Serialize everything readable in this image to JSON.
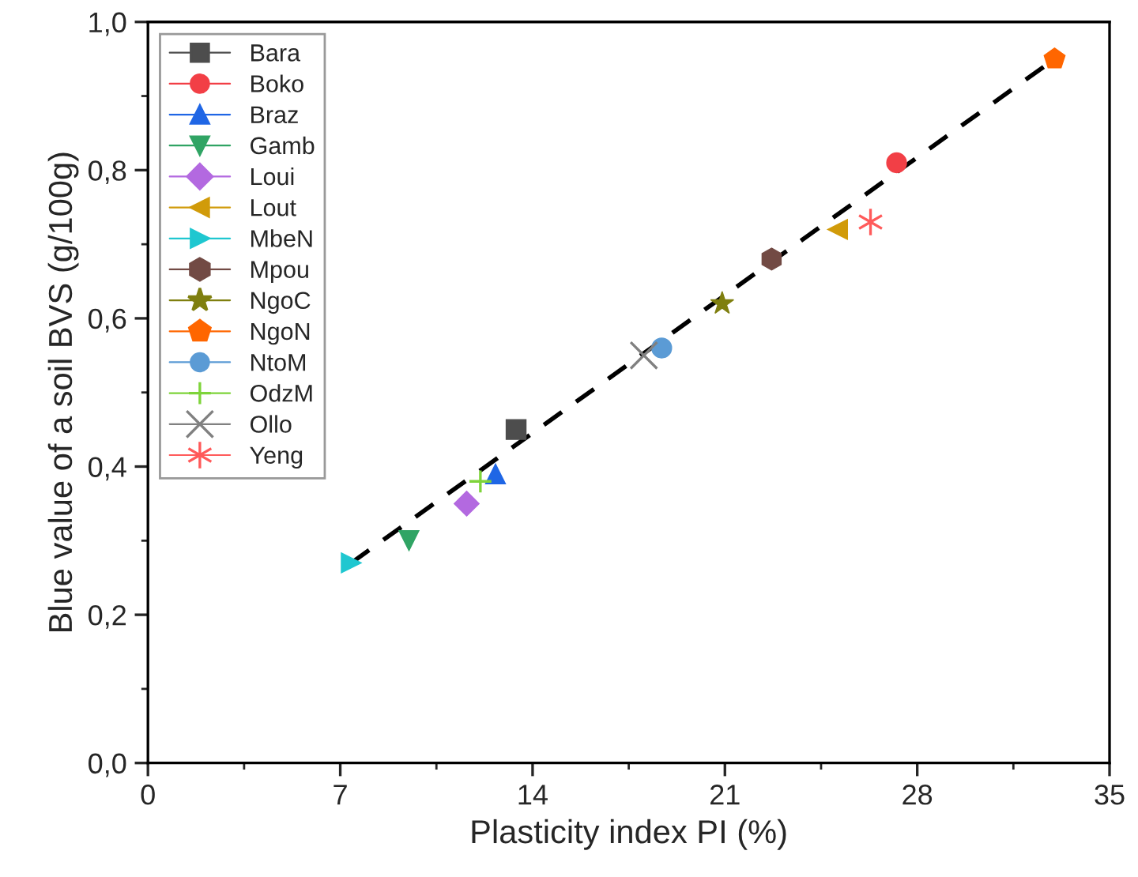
{
  "chart_data": {
    "type": "scatter",
    "xlabel": "Plasticity index PI (%)",
    "ylabel": "Blue value of a soil BVS (g/100g)",
    "xlim": [
      0,
      35
    ],
    "xticks": [
      0,
      7,
      14,
      21,
      28,
      35
    ],
    "ylim": [
      0,
      1
    ],
    "yticks": [
      {
        "value": 0,
        "label": "0,0"
      },
      {
        "value": 0.2,
        "label": "0,2"
      },
      {
        "value": 0.4,
        "label": "0,4"
      },
      {
        "value": 0.6,
        "label": "0,6"
      },
      {
        "value": 0.8,
        "label": "0,8"
      },
      {
        "value": 1,
        "label": "1,0"
      }
    ],
    "grid": false,
    "legend": "top left",
    "series": [
      {
        "name": "Bara",
        "color": "#4d4d4d",
        "marker": "square",
        "x": [
          13.4
        ],
        "values": [
          0.45
        ]
      },
      {
        "name": "Boko",
        "color": "#f23f46",
        "marker": "circle",
        "x": [
          27.25
        ],
        "values": [
          0.81
        ]
      },
      {
        "name": "Braz",
        "color": "#1f66e5",
        "marker": "triangle",
        "x": [
          12.65
        ],
        "values": [
          0.39
        ]
      },
      {
        "name": "Gamb",
        "color": "#30a464",
        "marker": "triangle-down",
        "x": [
          9.5
        ],
        "values": [
          0.3
        ]
      },
      {
        "name": "Loui",
        "color": "#b369e0",
        "marker": "diamond",
        "x": [
          11.6
        ],
        "values": [
          0.35
        ]
      },
      {
        "name": "Lout",
        "color": "#d19b0a",
        "marker": "triangle-left",
        "x": [
          25.1
        ],
        "values": [
          0.72
        ]
      },
      {
        "name": "MbeN",
        "color": "#1fc7d0",
        "marker": "triangle-right",
        "x": [
          7.4
        ],
        "values": [
          0.27
        ]
      },
      {
        "name": "Mpou",
        "color": "#724a44",
        "x": [
          22.7
        ],
        "values": [
          0.68
        ]
      },
      {
        "name": "NgoC",
        "color": "#7f7f0f",
        "marker": "star",
        "x": [
          20.9
        ],
        "values": [
          0.62
        ]
      },
      {
        "name": "NgoN",
        "color": "#ff6600",
        "x": [
          33.0
        ],
        "values": [
          0.95
        ]
      },
      {
        "name": "NtoM",
        "color": "#5b9bd5",
        "marker": "circle",
        "x": [
          18.7
        ],
        "values": [
          0.56
        ]
      },
      {
        "name": "OdzM",
        "color": "#7ed43a",
        "marker": "cross",
        "x": [
          12.1
        ],
        "values": [
          0.38
        ]
      },
      {
        "name": "Ollo",
        "color": "#808080",
        "marker": "x",
        "x": [
          18.05
        ],
        "values": [
          0.55
        ]
      },
      {
        "name": "Yeng",
        "color": "#ff5a5a",
        "x": [
          26.3
        ],
        "values": [
          0.73
        ]
      },
      {
        "type": "line",
        "color": "#000000",
        "line_style": "dashed",
        "marker": "none",
        "x": [
          7.4,
          33.0
        ],
        "values": [
          0.27,
          0.95
        ]
      }
    ]
  }
}
